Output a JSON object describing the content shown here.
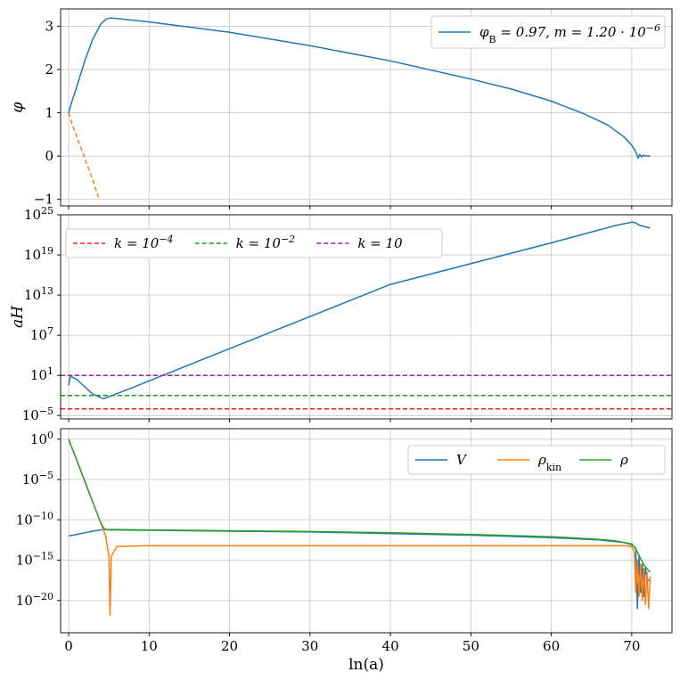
{
  "colors": {
    "blue": "#1f77b4",
    "orange": "#ff7f0e",
    "green": "#2ca02c",
    "red": "#ff2020",
    "green_dashed": "#11a011",
    "purple": "#a020a0"
  },
  "chart_data": [
    {
      "type": "line",
      "ylabel": "φ",
      "ylim": [
        -1.15,
        3.4
      ],
      "xlim": [
        -1,
        75
      ],
      "yticks": [
        -1,
        0,
        1,
        2,
        3
      ],
      "ytick_labels": [
        "−1",
        "0",
        "1",
        "2",
        "3"
      ],
      "grid": true,
      "legend_placement": "top-right",
      "legend": [
        "φ_B = 0.97, m = 1.20 · 10^−6"
      ],
      "series": [
        {
          "name": "φ_B = 0.97, m = 1.20 · 10^−6",
          "color": "blue",
          "dashed": false,
          "x": [
            0,
            0.3,
            1,
            2,
            3,
            4,
            4.7,
            5.2,
            6,
            10,
            20,
            30,
            40,
            50,
            55,
            60,
            64,
            67,
            69,
            70,
            70.5,
            70.8,
            71.0,
            71.2,
            71.4,
            71.6,
            71.8,
            72.0,
            72.3
          ],
          "y": [
            1.0,
            1.2,
            1.6,
            2.2,
            2.7,
            3.05,
            3.17,
            3.19,
            3.18,
            3.1,
            2.86,
            2.55,
            2.2,
            1.78,
            1.55,
            1.27,
            0.98,
            0.72,
            0.45,
            0.25,
            0.1,
            -0.05,
            0.04,
            -0.02,
            0.02,
            0.0,
            0.01,
            0.0,
            0.0
          ]
        },
        {
          "color": "orange",
          "dashed": true,
          "x": [
            0,
            0.5,
            1,
            2,
            3,
            3.7
          ],
          "y": [
            1.0,
            0.7,
            0.45,
            -0.05,
            -0.55,
            -0.95
          ]
        }
      ]
    },
    {
      "type": "line",
      "ylabel": "aH",
      "yscale": "log",
      "xlim": [
        -1,
        75
      ],
      "ylim_log10": [
        -5.5,
        25
      ],
      "yticks_log10": [
        -5,
        1,
        7,
        13,
        19,
        25
      ],
      "ytick_labels": [
        "10^−5",
        "10^1",
        "10^7",
        "10^13",
        "10^19",
        "10^25"
      ],
      "grid": true,
      "legend_placement": "top-left",
      "legend": [
        "k = 10^−4",
        "k = 10^−2",
        "k = 10"
      ],
      "series": [
        {
          "color": "blue",
          "dashed": false,
          "x": [
            0,
            0.2,
            1,
            2,
            3,
            4.3,
            5,
            8,
            20,
            40,
            60,
            68,
            70,
            70.5,
            71,
            72.3
          ],
          "y_log10": [
            -0.5,
            0.9,
            0.4,
            -0.7,
            -1.8,
            -2.5,
            -2.2,
            -0.8,
            5.0,
            14.6,
            20.8,
            23.4,
            23.9,
            23.8,
            23.4,
            23.0
          ]
        },
        {
          "name": "k = 10^−4",
          "color": "red",
          "dashed": true,
          "x": [
            -1,
            75
          ],
          "y_log10": [
            -4,
            -4
          ]
        },
        {
          "name": "k = 10^−2",
          "color": "green_dashed",
          "dashed": true,
          "x": [
            -1,
            75
          ],
          "y_log10": [
            -2,
            -2
          ]
        },
        {
          "name": "k = 10",
          "color": "purple",
          "dashed": true,
          "x": [
            -1,
            75
          ],
          "y_log10": [
            1,
            1
          ]
        }
      ]
    },
    {
      "type": "line",
      "xlabel": "ln(a)",
      "yscale": "log",
      "xlim": [
        -1,
        75
      ],
      "ylim_log10": [
        -24,
        1.3
      ],
      "yticks_log10": [
        0,
        -5,
        -10,
        -15,
        -20
      ],
      "ytick_labels": [
        "10^0",
        "10^−5",
        "10^−10",
        "10^−15",
        "10^−20"
      ],
      "xticks": [
        0,
        10,
        20,
        30,
        40,
        50,
        60,
        70
      ],
      "xtick_labels": [
        "0",
        "10",
        "20",
        "30",
        "40",
        "50",
        "60",
        "70"
      ],
      "grid": true,
      "legend_placement": "top-right",
      "legend": [
        "V",
        "ρ_kin",
        "ρ"
      ],
      "series": [
        {
          "name": "V",
          "color": "blue",
          "dashed": false,
          "x": [
            0,
            1,
            2,
            3,
            4,
            4.5,
            5,
            10,
            20,
            30,
            40,
            50,
            60,
            66,
            69,
            70,
            70.5,
            70.7,
            70.9,
            71.1,
            71.3,
            71.5,
            71.7,
            72.0,
            72.3
          ],
          "y_log10": [
            -12.0,
            -11.8,
            -11.6,
            -11.4,
            -11.25,
            -11.2,
            -11.25,
            -11.3,
            -11.4,
            -11.5,
            -11.7,
            -11.9,
            -12.2,
            -12.5,
            -12.8,
            -13.1,
            -13.5,
            -21.0,
            -14.5,
            -19.0,
            -15.5,
            -19.5,
            -16.0,
            -17.5,
            -17.5
          ]
        },
        {
          "name": "ρ_kin",
          "color": "orange",
          "dashed": false,
          "x": [
            0,
            1,
            2,
            3,
            4,
            4.6,
            5.0,
            5.15,
            5.3,
            6,
            10,
            30,
            50,
            65,
            69,
            70,
            70.3,
            70.5,
            70.7,
            70.9,
            71.1,
            71.3,
            71.5,
            71.7,
            71.9,
            72.1,
            72.3
          ],
          "y_log10": [
            0,
            -2.6,
            -5.2,
            -7.8,
            -10.4,
            -12.0,
            -14.5,
            -21.8,
            -14.5,
            -13.3,
            -13.2,
            -13.2,
            -13.2,
            -13.2,
            -13.2,
            -13.3,
            -14.0,
            -19.0,
            -15.0,
            -19.5,
            -15.5,
            -20.0,
            -16.0,
            -20.5,
            -16.5,
            -21.0,
            -17.0
          ]
        },
        {
          "name": "ρ",
          "color": "green",
          "dashed": false,
          "x": [
            0,
            1,
            2,
            3,
            4,
            4.5,
            5,
            10,
            20,
            30,
            40,
            50,
            60,
            65,
            68,
            69,
            70,
            70.5,
            71,
            71.5,
            72.3
          ],
          "y_log10": [
            0,
            -2.6,
            -5.2,
            -7.8,
            -10.4,
            -11.2,
            -11.2,
            -11.25,
            -11.35,
            -11.45,
            -11.6,
            -11.8,
            -12.1,
            -12.35,
            -12.6,
            -12.8,
            -13.0,
            -13.6,
            -14.6,
            -15.6,
            -16.5
          ]
        }
      ]
    }
  ]
}
